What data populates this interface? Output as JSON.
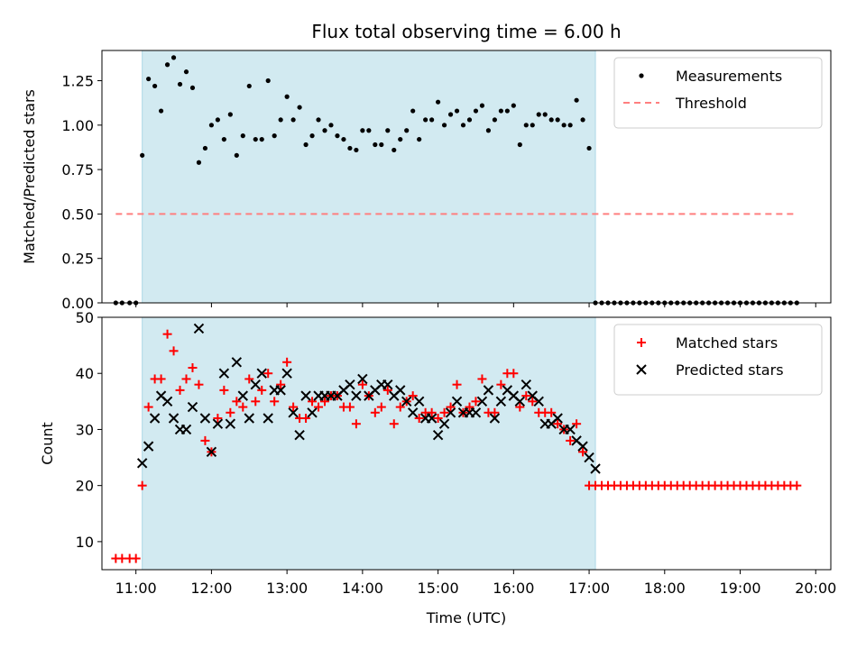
{
  "chart_data": [
    {
      "type": "scatter",
      "title": "Flux total observing time = 6.00 h",
      "xlabel": "",
      "ylabel": "Matched/Predicted stars",
      "xlim": [
        "10:33",
        "20:12"
      ],
      "ylim": [
        0,
        1.42
      ],
      "yticks": [
        "0.00",
        "0.25",
        "0.50",
        "0.75",
        "1.00",
        "1.25"
      ],
      "xticks": [
        "11:00",
        "12:00",
        "13:00",
        "14:00",
        "15:00",
        "16:00",
        "17:00",
        "18:00",
        "19:00",
        "20:00"
      ],
      "shaded_span": [
        "11:05",
        "17:05"
      ],
      "legend_placement": "top-right",
      "series": [
        {
          "name": "Measurements",
          "marker": "dot",
          "x": [
            "10:44",
            "10:49",
            "10:55",
            "11:00",
            "11:05",
            "11:10",
            "11:15",
            "11:20",
            "11:25",
            "11:30",
            "11:35",
            "11:40",
            "11:45",
            "11:50",
            "11:55",
            "12:00",
            "12:05",
            "12:10",
            "12:15",
            "12:20",
            "12:25",
            "12:30",
            "12:35",
            "12:40",
            "12:45",
            "12:50",
            "12:55",
            "13:00",
            "13:05",
            "13:10",
            "13:15",
            "13:20",
            "13:25",
            "13:30",
            "13:35",
            "13:40",
            "13:45",
            "13:50",
            "13:55",
            "14:00",
            "14:05",
            "14:10",
            "14:15",
            "14:20",
            "14:25",
            "14:30",
            "14:35",
            "14:40",
            "14:45",
            "14:50",
            "14:55",
            "15:00",
            "15:05",
            "15:10",
            "15:15",
            "15:20",
            "15:25",
            "15:30",
            "15:35",
            "15:40",
            "15:45",
            "15:50",
            "15:55",
            "16:00",
            "16:05",
            "16:10",
            "16:15",
            "16:20",
            "16:25",
            "16:30",
            "16:35",
            "16:40",
            "16:45",
            "16:50",
            "16:55",
            "17:00",
            "17:05",
            "17:10",
            "17:15",
            "17:20",
            "17:25",
            "17:30",
            "17:35",
            "17:40",
            "17:45",
            "17:50",
            "17:55",
            "18:00",
            "18:05",
            "18:10",
            "18:15",
            "18:20",
            "18:25",
            "18:30",
            "18:35",
            "18:40",
            "18:45",
            "18:50",
            "18:55",
            "19:00",
            "19:05",
            "19:10",
            "19:15",
            "19:20",
            "19:25",
            "19:30",
            "19:35",
            "19:40",
            "19:45"
          ],
          "y": [
            0,
            0,
            0,
            0,
            0.83,
            1.26,
            1.22,
            1.08,
            1.34,
            1.38,
            1.23,
            1.3,
            1.21,
            0.79,
            0.87,
            1.0,
            1.03,
            0.92,
            1.06,
            0.83,
            0.94,
            1.22,
            0.92,
            0.92,
            1.25,
            0.94,
            1.03,
            1.16,
            1.03,
            1.1,
            0.89,
            0.94,
            1.03,
            0.97,
            1.0,
            0.94,
            0.92,
            0.87,
            0.86,
            0.97,
            0.97,
            0.89,
            0.89,
            0.97,
            0.86,
            0.92,
            0.97,
            1.08,
            0.92,
            1.03,
            1.03,
            1.13,
            1.0,
            1.06,
            1.08,
            1.0,
            1.03,
            1.08,
            1.11,
            0.97,
            1.03,
            1.08,
            1.08,
            1.11,
            0.89,
            1.0,
            1.0,
            1.06,
            1.06,
            1.03,
            1.03,
            1.0,
            1.0,
            1.14,
            1.03,
            0.87,
            0,
            0,
            0,
            0,
            0,
            0,
            0,
            0,
            0,
            0,
            0,
            0,
            0,
            0,
            0,
            0,
            0,
            0,
            0,
            0,
            0,
            0,
            0,
            0,
            0,
            0,
            0,
            0,
            0,
            0,
            0,
            0,
            0
          ]
        },
        {
          "name": "Threshold",
          "style": "dashed",
          "color": "#ff7f7f",
          "x": [
            "10:44",
            "19:45"
          ],
          "y": [
            0.5,
            0.5
          ]
        }
      ]
    },
    {
      "type": "scatter",
      "title": "",
      "xlabel": "Time (UTC)",
      "ylabel": "Count",
      "xlim": [
        "10:33",
        "20:12"
      ],
      "ylim": [
        5,
        50
      ],
      "yticks": [
        "10",
        "20",
        "30",
        "40",
        "50"
      ],
      "xticks": [
        "11:00",
        "12:00",
        "13:00",
        "14:00",
        "15:00",
        "16:00",
        "17:00",
        "18:00",
        "19:00",
        "20:00"
      ],
      "shaded_span": [
        "11:05",
        "17:05"
      ],
      "legend_placement": "top-right",
      "series": [
        {
          "name": "Matched stars",
          "marker": "plus",
          "color": "#ff0000",
          "x": [
            "10:44",
            "10:49",
            "10:55",
            "11:00",
            "11:05",
            "11:10",
            "11:15",
            "11:20",
            "11:25",
            "11:30",
            "11:35",
            "11:40",
            "11:45",
            "11:50",
            "11:55",
            "12:00",
            "12:05",
            "12:10",
            "12:15",
            "12:20",
            "12:25",
            "12:30",
            "12:35",
            "12:40",
            "12:45",
            "12:50",
            "12:55",
            "13:00",
            "13:05",
            "13:10",
            "13:15",
            "13:20",
            "13:25",
            "13:30",
            "13:35",
            "13:40",
            "13:45",
            "13:50",
            "13:55",
            "14:00",
            "14:05",
            "14:10",
            "14:15",
            "14:20",
            "14:25",
            "14:30",
            "14:35",
            "14:40",
            "14:45",
            "14:50",
            "14:55",
            "15:00",
            "15:05",
            "15:10",
            "15:15",
            "15:20",
            "15:25",
            "15:30",
            "15:35",
            "15:40",
            "15:45",
            "15:50",
            "15:55",
            "16:00",
            "16:05",
            "16:10",
            "16:15",
            "16:20",
            "16:25",
            "16:30",
            "16:35",
            "16:40",
            "16:45",
            "16:50",
            "16:55",
            "17:00",
            "17:05",
            "17:10",
            "17:15",
            "17:20",
            "17:25",
            "17:30",
            "17:35",
            "17:40",
            "17:45",
            "17:50",
            "17:55",
            "18:00",
            "18:05",
            "18:10",
            "18:15",
            "18:20",
            "18:25",
            "18:30",
            "18:35",
            "18:40",
            "18:45",
            "18:50",
            "18:55",
            "19:00",
            "19:05",
            "19:10",
            "19:15",
            "19:20",
            "19:25",
            "19:30",
            "19:35",
            "19:40",
            "19:45"
          ],
          "y": [
            7,
            7,
            7,
            7,
            20,
            34,
            39,
            39,
            47,
            44,
            37,
            39,
            41,
            38,
            28,
            26,
            32,
            37,
            33,
            35,
            34,
            39,
            35,
            37,
            40,
            35,
            38,
            42,
            34,
            32,
            32,
            35,
            34,
            35,
            36,
            36,
            34,
            34,
            31,
            38,
            36,
            33,
            34,
            37,
            31,
            34,
            35,
            36,
            32,
            33,
            33,
            32,
            33,
            34,
            38,
            33,
            34,
            35,
            39,
            33,
            33,
            38,
            40,
            40,
            34,
            36,
            35,
            33,
            33,
            33,
            31,
            30,
            28,
            31,
            26,
            20,
            20,
            20,
            20,
            20,
            20,
            20,
            20,
            20,
            20,
            20,
            20,
            20,
            20,
            20,
            20,
            20,
            20,
            20,
            20,
            20,
            20,
            20,
            20,
            20,
            20,
            20,
            20,
            20,
            20,
            20,
            20,
            20,
            20
          ]
        },
        {
          "name": "Predicted stars",
          "marker": "x",
          "color": "#000000",
          "x": [
            "11:05",
            "11:10",
            "11:15",
            "11:20",
            "11:25",
            "11:30",
            "11:35",
            "11:40",
            "11:45",
            "11:50",
            "11:55",
            "12:00",
            "12:05",
            "12:10",
            "12:15",
            "12:20",
            "12:25",
            "12:30",
            "12:35",
            "12:40",
            "12:45",
            "12:50",
            "12:55",
            "13:00",
            "13:05",
            "13:10",
            "13:15",
            "13:20",
            "13:25",
            "13:30",
            "13:35",
            "13:40",
            "13:45",
            "13:50",
            "13:55",
            "14:00",
            "14:05",
            "14:10",
            "14:15",
            "14:20",
            "14:25",
            "14:30",
            "14:35",
            "14:40",
            "14:45",
            "14:50",
            "14:55",
            "15:00",
            "15:05",
            "15:10",
            "15:15",
            "15:20",
            "15:25",
            "15:30",
            "15:35",
            "15:40",
            "15:45",
            "15:50",
            "15:55",
            "16:00",
            "16:05",
            "16:10",
            "16:15",
            "16:20",
            "16:25",
            "16:30",
            "16:35",
            "16:40",
            "16:45",
            "16:50",
            "16:55",
            "17:00",
            "17:05"
          ],
          "y": [
            24,
            27,
            32,
            36,
            35,
            32,
            30,
            30,
            34,
            48,
            32,
            26,
            31,
            40,
            31,
            42,
            36,
            32,
            38,
            40,
            32,
            37,
            37,
            40,
            33,
            29,
            36,
            33,
            36,
            36,
            36,
            36,
            37,
            38,
            36,
            39,
            36,
            37,
            38,
            38,
            36,
            37,
            35,
            33,
            35,
            32,
            32,
            29,
            31,
            33,
            35,
            33,
            33,
            33,
            35,
            37,
            32,
            35,
            37,
            36,
            35,
            38,
            36,
            35,
            31,
            31,
            32,
            30,
            30,
            28,
            27,
            25,
            23
          ]
        }
      ]
    }
  ]
}
